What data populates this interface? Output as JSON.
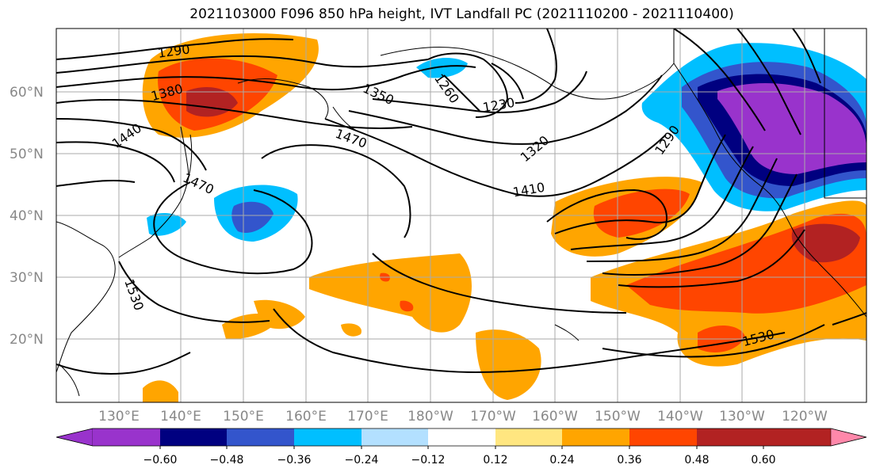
{
  "title": "2021103000 F096 850 hPa height, IVT Landfall PC (2021110200 - 2021110400)",
  "map": {
    "lat_labels": [
      "60°N",
      "50°N",
      "40°N",
      "30°N",
      "20°N"
    ],
    "lon_labels": [
      "130°E",
      "140°E",
      "150°E",
      "160°E",
      "170°E",
      "180°W",
      "170°W",
      "160°W",
      "150°W",
      "140°W",
      "130°W",
      "120°W"
    ],
    "contour_labels": [
      "1290",
      "1380",
      "1440",
      "1350",
      "1260",
      "1230",
      "1470",
      "1470",
      "1320",
      "1290",
      "1410",
      "1530",
      "1530"
    ]
  },
  "colorbar": {
    "colors": [
      "#9933cc",
      "#000080",
      "#3355cc",
      "#00bfff",
      "#b3e0ff",
      "#ffffff",
      "#ffe680",
      "#ffa500",
      "#ff4500",
      "#b22222",
      "#ff88aa"
    ],
    "tick_labels": [
      "−0.60",
      "−0.48",
      "−0.36",
      "−0.24",
      "−0.12",
      "0.12",
      "0.24",
      "0.36",
      "0.48",
      "0.60"
    ]
  }
}
